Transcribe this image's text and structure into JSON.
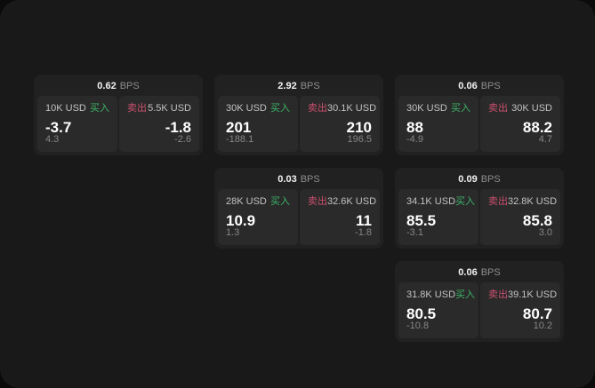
{
  "labels": {
    "bps": "BPS",
    "buy": "买入",
    "sell": "卖出"
  },
  "colors": {
    "buy_green": "#3db368",
    "sell_red": "#cb4f6e",
    "panel_bg": "#191919",
    "card_bg": "#212121",
    "side_bg": "#2a2a2a"
  },
  "cards": [
    {
      "row": 1,
      "col": 1,
      "bps": "0.62",
      "buy": {
        "amount": "10K USD",
        "value": "-3.7",
        "sub": "4.3"
      },
      "sell": {
        "amount": "5.5K USD",
        "value": "-1.8",
        "sub": "-2.6"
      }
    },
    {
      "row": 1,
      "col": 2,
      "bps": "2.92",
      "buy": {
        "amount": "30K USD",
        "value": "201",
        "sub": "-188.1"
      },
      "sell": {
        "amount": "30.1K USD",
        "value": "210",
        "sub": "196.5"
      }
    },
    {
      "row": 1,
      "col": 3,
      "bps": "0.06",
      "buy": {
        "amount": "30K USD",
        "value": "88",
        "sub": "-4.9"
      },
      "sell": {
        "amount": "30K USD",
        "value": "88.2",
        "sub": "4.7"
      }
    },
    {
      "row": 2,
      "col": 2,
      "bps": "0.03",
      "buy": {
        "amount": "28K USD",
        "value": "10.9",
        "sub": "1.3"
      },
      "sell": {
        "amount": "32.6K USD",
        "value": "11",
        "sub": "-1.8"
      }
    },
    {
      "row": 2,
      "col": 3,
      "bps": "0.09",
      "buy": {
        "amount": "34.1K USD",
        "value": "85.5",
        "sub": "-3.1"
      },
      "sell": {
        "amount": "32.8K USD",
        "value": "85.8",
        "sub": "3.0"
      }
    },
    {
      "row": 3,
      "col": 3,
      "bps": "0.06",
      "buy": {
        "amount": "31.8K USD",
        "value": "80.5",
        "sub": "-10.8"
      },
      "sell": {
        "amount": "39.1K USD",
        "value": "80.7",
        "sub": "10.2"
      }
    }
  ]
}
